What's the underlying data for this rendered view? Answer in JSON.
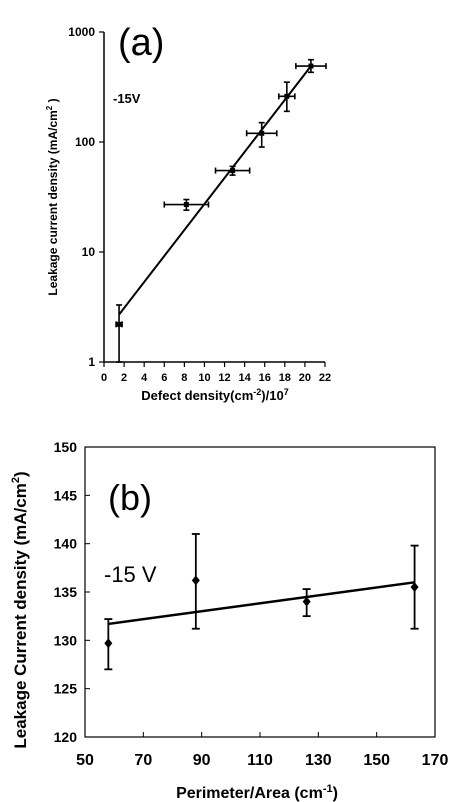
{
  "chart_data": [
    {
      "panel_label": "(a)",
      "type": "scatter",
      "annotation": "-15V",
      "xlabel": "Defect density(cm",
      "xlabel_sup": "-2",
      "xlabel_tail": ")/10",
      "xlabel_tail_sup": "7",
      "ylabel": "Leakage current density (mA/cm",
      "ylabel_sup": "2",
      "ylabel_tail": " )",
      "xlim": [
        0,
        22
      ],
      "ylim": [
        1,
        1000
      ],
      "yscale": "log",
      "xticks": [
        0,
        2,
        4,
        6,
        8,
        10,
        12,
        14,
        16,
        18,
        20,
        22
      ],
      "yticks": [
        1,
        10,
        100,
        1000
      ],
      "points": [
        {
          "x": 1.5,
          "y": 2.2,
          "xerr": 0.3,
          "ylo": 1.0,
          "yhi": 3.3
        },
        {
          "x": 8.2,
          "y": 27,
          "xerr": 2.2,
          "ylo": 24,
          "yhi": 30
        },
        {
          "x": 12.8,
          "y": 55,
          "xerr": 1.7,
          "ylo": 50,
          "yhi": 60
        },
        {
          "x": 15.7,
          "y": 120,
          "xerr": 1.5,
          "ylo": 90,
          "yhi": 150
        },
        {
          "x": 18.2,
          "y": 260,
          "xerr": 0.8,
          "ylo": 190,
          "yhi": 350
        },
        {
          "x": 20.6,
          "y": 490,
          "xerr": 1.5,
          "ylo": 430,
          "yhi": 560
        }
      ],
      "fit_line": {
        "x": [
          1.5,
          20.6
        ],
        "y": [
          2.7,
          490
        ]
      }
    },
    {
      "panel_label": "(b)",
      "type": "scatter",
      "annotation": "-15 V",
      "xlabel": "Perimeter/Area (cm",
      "xlabel_sup": "-1",
      "xlabel_tail": ")",
      "ylabel": "Leakage Current density (mA/cm",
      "ylabel_sup": "2",
      "ylabel_tail": ")",
      "xlim": [
        50,
        170
      ],
      "ylim": [
        120,
        150
      ],
      "xticks": [
        50,
        70,
        90,
        110,
        130,
        150,
        170
      ],
      "yticks": [
        120,
        125,
        130,
        135,
        140,
        145,
        150
      ],
      "points": [
        {
          "x": 58,
          "y": 129.7,
          "ylo": 127,
          "yhi": 132.2
        },
        {
          "x": 88,
          "y": 136.2,
          "ylo": 131.2,
          "yhi": 141
        },
        {
          "x": 126,
          "y": 134,
          "ylo": 132.5,
          "yhi": 135.3
        },
        {
          "x": 163,
          "y": 135.5,
          "ylo": 131.2,
          "yhi": 139.8
        }
      ],
      "fit_line": {
        "x": [
          58,
          163
        ],
        "y": [
          131.7,
          136
        ]
      }
    }
  ]
}
